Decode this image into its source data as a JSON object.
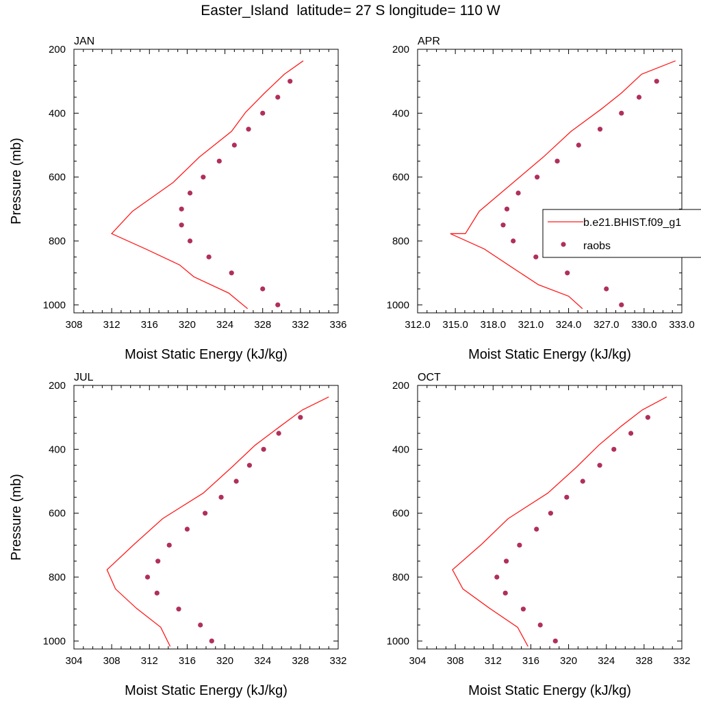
{
  "figure": {
    "title": "Easter_Island  latitude= 27 S longitude= 110 W"
  },
  "legend": {
    "placement": "right of APR panel",
    "model_label": "b.e21.BHIST.f09_g1",
    "obs_label": "raobs"
  },
  "colors": {
    "model_line": "#ff1a1a",
    "obs_marker": "#b0305a"
  },
  "chart_data": [
    {
      "panel": "JAN",
      "type": "line",
      "title": "JAN",
      "xlabel": "Moist Static Energy (kJ/kg)",
      "ylabel": "Pressure (mb)",
      "xlim": [
        308,
        336
      ],
      "ylim": [
        200,
        1025
      ],
      "y_inverted": true,
      "xticks": [
        308,
        312,
        316,
        320,
        324,
        328,
        332,
        336
      ],
      "xtick_labels": [
        "308",
        "312",
        "316",
        "320",
        "324",
        "328",
        "332",
        "336"
      ],
      "yticks": [
        200,
        400,
        600,
        800,
        1000
      ],
      "ytick_labels": [
        "200",
        "400",
        "600",
        "800",
        "1000"
      ],
      "model": {
        "mse": [
          332.3,
          330.3,
          328.2,
          326.2,
          324.7,
          321.3,
          318.5,
          314.2,
          312.0,
          315.6,
          319.2,
          320.7,
          324.4,
          325.9,
          326.4
        ],
        "pressure": [
          236,
          278,
          337,
          397,
          457,
          537,
          617,
          707,
          777,
          825,
          875,
          912,
          963,
          1000,
          1012
        ]
      },
      "obs": {
        "mse": [
          330.9,
          329.6,
          328.0,
          326.5,
          325.0,
          323.4,
          321.7,
          320.3,
          319.4,
          319.4,
          320.3,
          322.3,
          324.7,
          328.0,
          329.6
        ],
        "pressure": [
          300,
          350,
          400,
          450,
          500,
          550,
          600,
          650,
          700,
          750,
          800,
          850,
          900,
          950,
          1000
        ]
      }
    },
    {
      "panel": "APR",
      "type": "line",
      "title": "APR",
      "xlabel": "Moist Static Energy (kJ/kg)",
      "ylabel": "",
      "xlim": [
        312,
        333
      ],
      "ylim": [
        200,
        1025
      ],
      "y_inverted": true,
      "xticks": [
        312,
        315,
        318,
        321,
        324,
        327,
        330,
        333
      ],
      "xtick_labels": [
        "312.0",
        "315.0",
        "318.0",
        "321.0",
        "324.0",
        "327.0",
        "330.0",
        "333.0"
      ],
      "yticks": [
        200,
        400,
        600,
        800,
        1000
      ],
      "ytick_labels": [
        "200",
        "400",
        "600",
        "800",
        "1000"
      ],
      "model": {
        "mse": [
          332.5,
          329.8,
          328.2,
          326.6,
          324.2,
          322.0,
          319.6,
          316.9,
          315.8,
          314.6,
          317.3,
          319.4,
          321.6,
          324.0,
          325.1
        ],
        "pressure": [
          236,
          278,
          337,
          387,
          457,
          537,
          617,
          707,
          777,
          777,
          825,
          880,
          937,
          973,
          1012
        ]
      },
      "obs": {
        "mse": [
          331.0,
          329.6,
          328.2,
          326.5,
          324.8,
          323.1,
          321.5,
          320.0,
          319.1,
          318.8,
          319.6,
          321.4,
          323.9,
          327.0,
          328.2
        ],
        "pressure": [
          300,
          350,
          400,
          450,
          500,
          550,
          600,
          650,
          700,
          750,
          800,
          850,
          900,
          950,
          1000
        ]
      }
    },
    {
      "panel": "JUL",
      "type": "line",
      "title": "JUL",
      "xlabel": "Moist Static Energy (kJ/kg)",
      "ylabel": "Pressure (mb)",
      "xlim": [
        304,
        332
      ],
      "ylim": [
        200,
        1025
      ],
      "y_inverted": true,
      "xticks": [
        304,
        308,
        312,
        316,
        320,
        324,
        328,
        332
      ],
      "xtick_labels": [
        "304",
        "308",
        "312",
        "316",
        "320",
        "324",
        "328",
        "332"
      ],
      "yticks": [
        200,
        400,
        600,
        800,
        1000
      ],
      "ytick_labels": [
        "200",
        "400",
        "600",
        "800",
        "1000"
      ],
      "model": {
        "mse": [
          331.0,
          328.2,
          325.9,
          323.2,
          320.7,
          317.7,
          313.4,
          310.4,
          307.5,
          308.4,
          310.6,
          313.2,
          314.2
        ],
        "pressure": [
          236,
          277,
          327,
          387,
          457,
          537,
          617,
          697,
          777,
          837,
          897,
          957,
          1017
        ]
      },
      "obs": {
        "mse": [
          328.0,
          325.7,
          324.1,
          322.6,
          321.2,
          319.6,
          317.9,
          316.0,
          314.1,
          312.9,
          311.8,
          312.8,
          315.1,
          317.4,
          318.6
        ],
        "pressure": [
          300,
          350,
          400,
          450,
          500,
          550,
          600,
          650,
          700,
          750,
          800,
          850,
          900,
          950,
          1000
        ]
      }
    },
    {
      "panel": "OCT",
      "type": "line",
      "title": "OCT",
      "xlabel": "Moist Static Energy (kJ/kg)",
      "ylabel": "",
      "xlim": [
        304,
        332
      ],
      "ylim": [
        200,
        1025
      ],
      "y_inverted": true,
      "xticks": [
        304,
        308,
        312,
        316,
        320,
        324,
        328,
        332
      ],
      "xtick_labels": [
        "304",
        "308",
        "312",
        "316",
        "320",
        "324",
        "328",
        "332"
      ],
      "yticks": [
        200,
        400,
        600,
        800,
        1000
      ],
      "ytick_labels": [
        "200",
        "400",
        "600",
        "800",
        "1000"
      ],
      "model": {
        "mse": [
          330.4,
          327.8,
          325.6,
          323.2,
          320.8,
          317.8,
          313.6,
          310.8,
          307.7,
          308.8,
          311.6,
          314.6,
          315.7
        ],
        "pressure": [
          236,
          277,
          327,
          387,
          457,
          537,
          617,
          697,
          777,
          837,
          897,
          957,
          1017
        ]
      },
      "obs": {
        "mse": [
          328.4,
          326.6,
          324.8,
          323.3,
          321.5,
          319.8,
          318.1,
          316.6,
          314.8,
          313.4,
          312.4,
          313.3,
          315.2,
          317.0,
          318.6
        ],
        "pressure": [
          300,
          350,
          400,
          450,
          500,
          550,
          600,
          650,
          700,
          750,
          800,
          850,
          900,
          950,
          1000
        ]
      }
    }
  ]
}
